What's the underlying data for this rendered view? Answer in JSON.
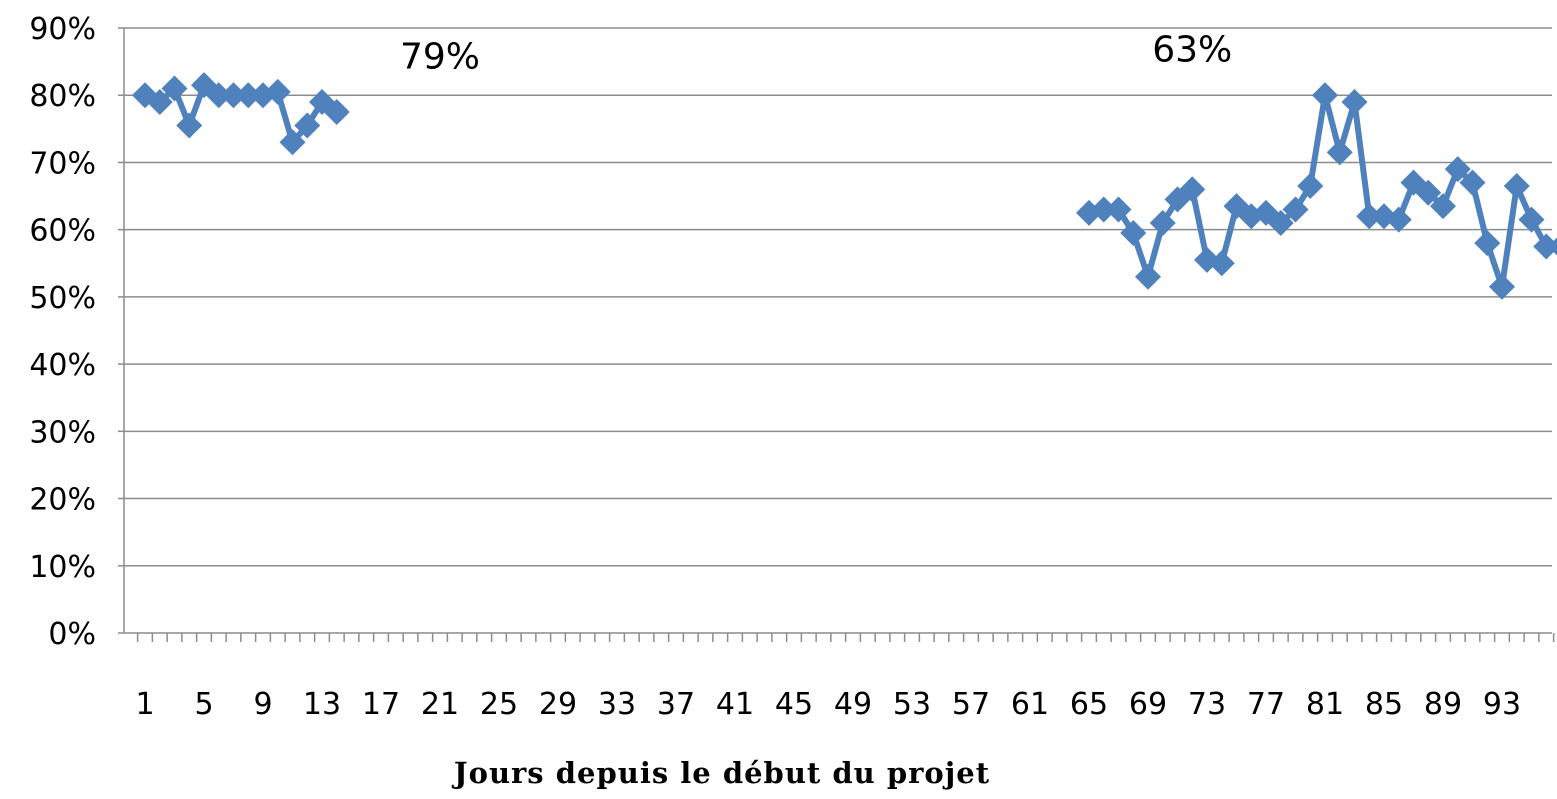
{
  "chart_data": {
    "type": "line",
    "title": "",
    "xlabel": "Jours depuis le début du projet",
    "ylabel": "",
    "ylim": [
      0,
      0.9
    ],
    "xlim": [
      1,
      97
    ],
    "y_ticks": [
      "0%",
      "10%",
      "20%",
      "30%",
      "40%",
      "50%",
      "60%",
      "70%",
      "80%",
      "90%"
    ],
    "x_ticks": [
      "1",
      "5",
      "9",
      "13",
      "17",
      "21",
      "25",
      "29",
      "33",
      "37",
      "41",
      "45",
      "49",
      "53",
      "57",
      "61",
      "65",
      "69",
      "73",
      "77",
      "81",
      "85",
      "89",
      "93"
    ],
    "grid": true,
    "legend": "none",
    "series_color": "#4F81BD",
    "segments": [
      {
        "x": [
          1,
          2,
          3,
          4,
          5,
          6,
          7,
          8,
          9,
          10,
          11,
          12,
          13,
          14
        ],
        "values": [
          0.8,
          0.79,
          0.81,
          0.755,
          0.815,
          0.8,
          0.8,
          0.8,
          0.8,
          0.805,
          0.73,
          0.755,
          0.79,
          0.775
        ]
      },
      {
        "x": [
          65,
          66,
          67,
          68,
          69,
          70,
          71,
          72,
          73,
          74,
          75,
          76,
          77,
          78,
          79,
          80,
          81,
          82,
          83,
          84,
          85,
          86,
          87,
          88,
          89,
          90,
          91,
          92,
          93,
          94,
          95,
          96,
          97
        ],
        "values": [
          0.625,
          0.63,
          0.63,
          0.595,
          0.53,
          0.61,
          0.645,
          0.66,
          0.555,
          0.55,
          0.635,
          0.62,
          0.625,
          0.61,
          0.63,
          0.665,
          0.8,
          0.715,
          0.79,
          0.62,
          0.62,
          0.615,
          0.67,
          0.655,
          0.635,
          0.69,
          0.67,
          0.58,
          0.515,
          0.665,
          0.615,
          0.575,
          0.575
        ]
      }
    ],
    "annotations": [
      {
        "text": "79%",
        "x": 21,
        "y": 0.84
      },
      {
        "text": "63%",
        "x": 72,
        "y": 0.85
      }
    ]
  }
}
